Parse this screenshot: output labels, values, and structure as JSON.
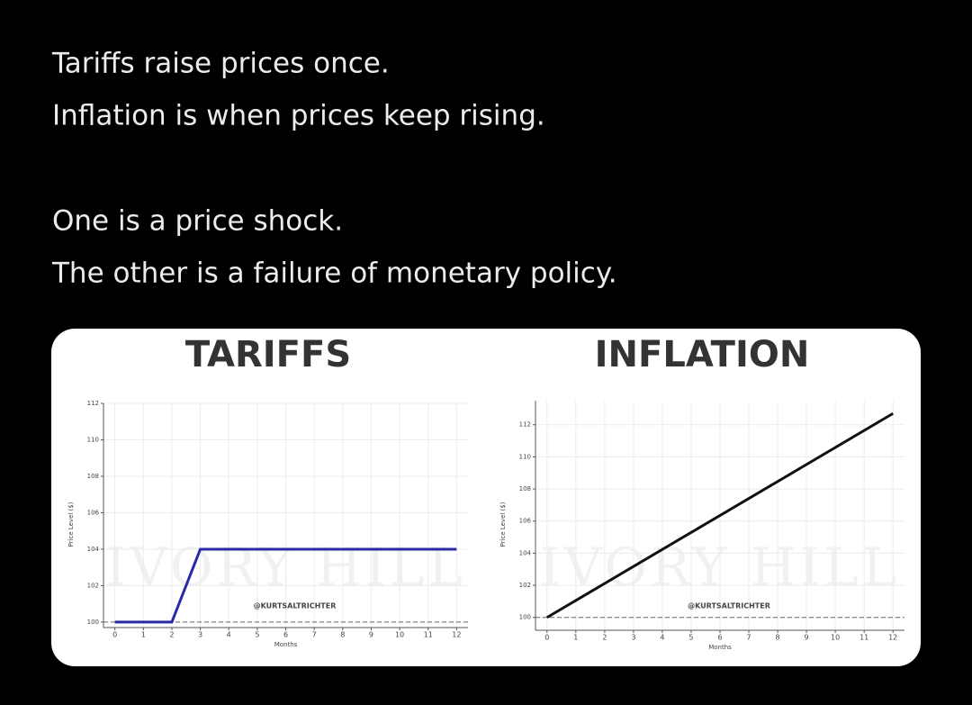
{
  "post": {
    "lines": [
      "Tariffs raise prices once.",
      "Inflation is when prices keep rising.",
      "One is a price shock.",
      "The other is a failure of monetary policy."
    ]
  },
  "chart_data": [
    {
      "type": "line",
      "title": "TARIFFS",
      "x_label": "Months",
      "y_label": "Price Level ($)",
      "x": [
        0,
        1,
        2,
        3,
        4,
        5,
        6,
        7,
        8,
        9,
        10,
        11,
        12
      ],
      "values": [
        100,
        100,
        100,
        104,
        104,
        104,
        104,
        104,
        104,
        104,
        104,
        104,
        104
      ],
      "color": "#2a2aa6",
      "reference_line": 100,
      "xlim": [
        -0.4,
        12.4
      ],
      "ylim": [
        99.7,
        112
      ],
      "xticks": [
        0,
        1,
        2,
        3,
        4,
        5,
        6,
        7,
        8,
        9,
        10,
        11,
        12
      ],
      "yticks": [
        100,
        102,
        104,
        106,
        108,
        110,
        112
      ],
      "grid": true,
      "watermark": "@KURTSALTRICHTER",
      "background_text": "IVORY HILL"
    },
    {
      "type": "line",
      "title": "INFLATION",
      "x_label": "Months",
      "y_label": "Price Level ($)",
      "x": [
        0,
        12
      ],
      "values": [
        100,
        112.7
      ],
      "color": "#111111",
      "reference_line": 100,
      "xlim": [
        -0.4,
        12.4
      ],
      "ylim": [
        99.2,
        113.5
      ],
      "xticks": [
        0,
        1,
        2,
        3,
        4,
        5,
        6,
        7,
        8,
        9,
        10,
        11,
        12
      ],
      "yticks": [
        100,
        102,
        104,
        106,
        108,
        110,
        112
      ],
      "grid": true,
      "watermark": "@KURTSALTRICHTER",
      "background_text": "IVORY HILL"
    }
  ]
}
